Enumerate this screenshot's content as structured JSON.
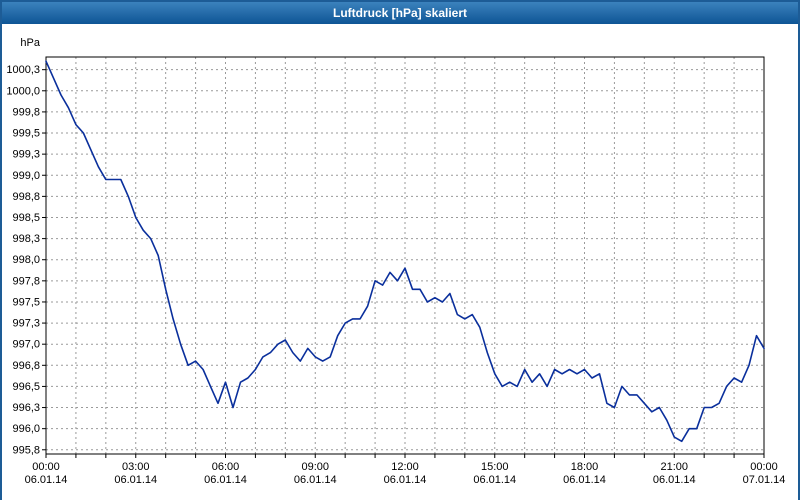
{
  "window": {
    "title": "Luftdruck [hPa] skaliert"
  },
  "colors": {
    "titlebar_bg_top": "#3b82bd",
    "titlebar_bg_bottom": "#0e5595",
    "titlebar_text": "#ffffff",
    "window_border": "#1d5c96",
    "plot_border": "#000000",
    "grid": "#9a9a9a",
    "line": "#0a2f9c"
  },
  "chart_data": {
    "type": "line",
    "title": "Luftdruck [hPa] skaliert",
    "ylabel": "hPa",
    "xlabel": "",
    "x_start_hours": 0,
    "x_step_hours": 0.25,
    "xlim_hours": [
      0,
      24
    ],
    "ylim": [
      995.7,
      1000.4
    ],
    "grid_style": "dashed",
    "minor_x_grid_step_hours": 1,
    "grid_color": "#9a9a9a",
    "line_color": "#0a2f9c",
    "y_ticks": [
      1000.25,
      1000.0,
      999.75,
      999.5,
      999.25,
      999.0,
      998.75,
      998.5,
      998.25,
      998.0,
      997.75,
      997.5,
      997.25,
      997.0,
      996.75,
      996.5,
      996.25,
      996.0,
      995.75
    ],
    "y_tick_labels": [
      "1000,3",
      "1000,0",
      "999,8",
      "999,5",
      "999,3",
      "999,0",
      "998,8",
      "998,5",
      "998,3",
      "998,0",
      "997,8",
      "997,5",
      "997,3",
      "997,0",
      "996,8",
      "996,5",
      "996,3",
      "996,0",
      "995,8"
    ],
    "x_ticks": [
      {
        "hour": 0,
        "time": "00:00",
        "date": "06.01.14"
      },
      {
        "hour": 3,
        "time": "03:00",
        "date": "06.01.14"
      },
      {
        "hour": 6,
        "time": "06:00",
        "date": "06.01.14"
      },
      {
        "hour": 9,
        "time": "09:00",
        "date": "06.01.14"
      },
      {
        "hour": 12,
        "time": "12:00",
        "date": "06.01.14"
      },
      {
        "hour": 15,
        "time": "15:00",
        "date": "06.01.14"
      },
      {
        "hour": 18,
        "time": "18:00",
        "date": "06.01.14"
      },
      {
        "hour": 21,
        "time": "21:00",
        "date": "06.01.14"
      },
      {
        "hour": 24,
        "time": "00:00",
        "date": "07.01.14"
      }
    ],
    "values": [
      1000.35,
      1000.15,
      999.95,
      999.8,
      999.6,
      999.5,
      999.3,
      999.1,
      998.95,
      998.95,
      998.95,
      998.75,
      998.5,
      998.35,
      998.25,
      998.05,
      997.65,
      997.3,
      997.0,
      996.75,
      996.8,
      996.7,
      996.5,
      996.3,
      996.55,
      996.25,
      996.55,
      996.6,
      996.7,
      996.85,
      996.9,
      997.0,
      997.05,
      996.9,
      996.8,
      996.95,
      996.85,
      996.8,
      996.85,
      997.1,
      997.25,
      997.3,
      997.3,
      997.45,
      997.75,
      997.7,
      997.85,
      997.75,
      997.9,
      997.65,
      997.65,
      997.5,
      997.55,
      997.5,
      997.6,
      997.35,
      997.3,
      997.35,
      997.2,
      996.9,
      996.65,
      996.5,
      996.55,
      996.5,
      996.7,
      996.55,
      996.65,
      996.5,
      996.7,
      996.65,
      996.7,
      996.65,
      996.7,
      996.6,
      996.65,
      996.3,
      996.25,
      996.5,
      996.4,
      996.4,
      996.3,
      996.2,
      996.25,
      996.1,
      995.9,
      995.85,
      996.0,
      996.0,
      996.25,
      996.25,
      996.3,
      996.5,
      996.6,
      996.55,
      996.75,
      997.1,
      996.95
    ]
  }
}
